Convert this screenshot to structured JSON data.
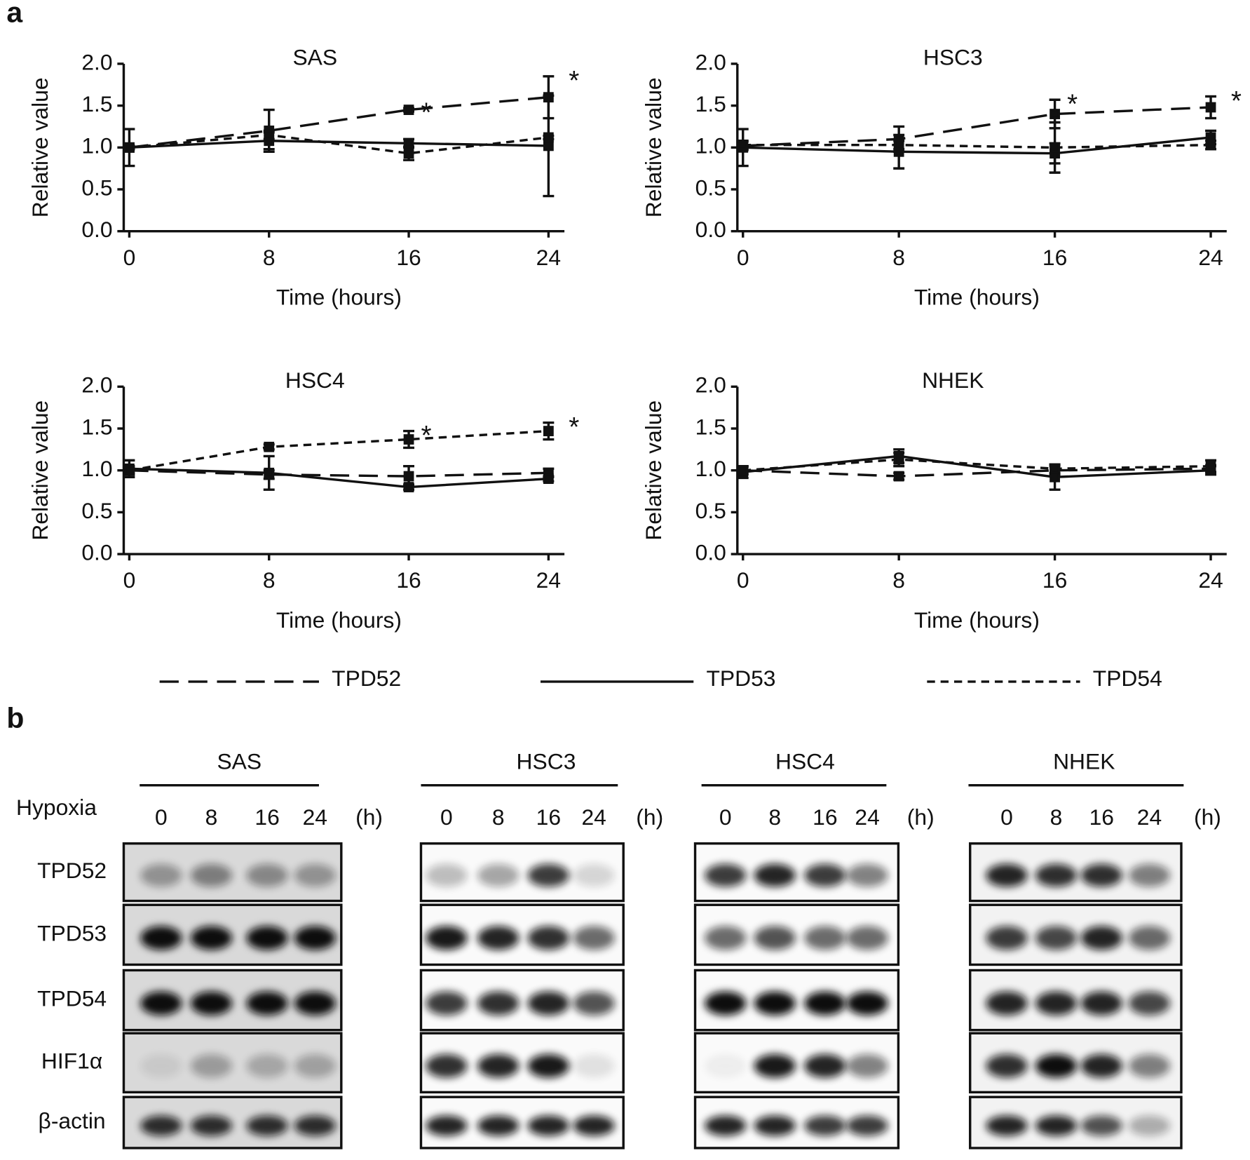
{
  "panel_labels": [
    "a",
    "b"
  ],
  "chart_data": [
    {
      "type": "line",
      "title": "SAS",
      "x": [
        0,
        8,
        16,
        24
      ],
      "xlim": [
        0,
        24
      ],
      "xticks": [
        0,
        8,
        16,
        24
      ],
      "ylim": [
        0,
        2
      ],
      "yticks": [
        {
          "value": 0,
          "label": "0.0"
        },
        {
          "value": 0.5,
          "label": "0.5"
        },
        {
          "value": 1,
          "label": "1.0"
        },
        {
          "value": 1.5,
          "label": "1.5"
        },
        {
          "value": 2,
          "label": "2.0"
        }
      ],
      "xlabel": "Time (hours)",
      "ylabel": "Relative value",
      "series": [
        {
          "name": "TPD52",
          "color": "#111111",
          "dash": "long",
          "values": [
            1.0,
            1.2,
            1.45,
            1.6
          ],
          "errors": [
            0.02,
            0.25,
            0.02,
            0.25
          ]
        },
        {
          "name": "TPD53",
          "color": "#111111",
          "dash": "solid",
          "values": [
            1.0,
            1.08,
            1.05,
            1.02
          ],
          "errors": [
            0.22,
            0.1,
            0.05,
            0.6
          ]
        },
        {
          "name": "TPD54",
          "color": "#111111",
          "dash": "short",
          "values": [
            1.0,
            1.15,
            0.93,
            1.12
          ],
          "errors": [
            0.02,
            0.05,
            0.08,
            0.02
          ]
        }
      ],
      "annotations": [
        {
          "text": "*",
          "x": 16,
          "series": "TPD52"
        },
        {
          "text": "*",
          "x": 24,
          "series": "TPD52"
        }
      ]
    },
    {
      "type": "line",
      "title": "HSC3",
      "x": [
        0,
        8,
        16,
        24
      ],
      "xlim": [
        0,
        24
      ],
      "xticks": [
        0,
        8,
        16,
        24
      ],
      "ylim": [
        0,
        2
      ],
      "yticks": [
        {
          "value": 0,
          "label": "0.0"
        },
        {
          "value": 0.5,
          "label": "0.5"
        },
        {
          "value": 1,
          "label": "1.0"
        },
        {
          "value": 1.5,
          "label": "1.5"
        },
        {
          "value": 2,
          "label": "2.0"
        }
      ],
      "xlabel": "Time (hours)",
      "ylabel": "Relative value",
      "series": [
        {
          "name": "TPD52",
          "color": "#111111",
          "dash": "long",
          "values": [
            1.02,
            1.1,
            1.4,
            1.48
          ],
          "errors": [
            0.05,
            0.15,
            0.17,
            0.13
          ]
        },
        {
          "name": "TPD53",
          "color": "#111111",
          "dash": "solid",
          "values": [
            1.0,
            0.95,
            0.93,
            1.12
          ],
          "errors": [
            0.22,
            0.2,
            0.12,
            0.08
          ]
        },
        {
          "name": "TPD54",
          "color": "#111111",
          "dash": "short",
          "values": [
            1.03,
            1.03,
            1.0,
            1.03
          ],
          "errors": [
            0.05,
            0.05,
            0.3,
            0.05
          ]
        }
      ],
      "annotations": [
        {
          "text": "*",
          "x": 16,
          "series": "TPD52"
        },
        {
          "text": "*",
          "x": 24,
          "series": "TPD52"
        }
      ]
    },
    {
      "type": "line",
      "title": "HSC4",
      "x": [
        0,
        8,
        16,
        24
      ],
      "xlim": [
        0,
        24
      ],
      "xticks": [
        0,
        8,
        16,
        24
      ],
      "ylim": [
        0,
        2
      ],
      "yticks": [
        {
          "value": 0,
          "label": "0.0"
        },
        {
          "value": 0.5,
          "label": "0.5"
        },
        {
          "value": 1,
          "label": "1.0"
        },
        {
          "value": 1.5,
          "label": "1.5"
        },
        {
          "value": 2,
          "label": "2.0"
        }
      ],
      "xlabel": "Time (hours)",
      "ylabel": "Relative value",
      "series": [
        {
          "name": "TPD52",
          "color": "#111111",
          "dash": "long",
          "values": [
            1.0,
            0.95,
            0.93,
            0.97
          ],
          "errors": [
            0.05,
            0.05,
            0.12,
            0.05
          ]
        },
        {
          "name": "TPD53",
          "color": "#111111",
          "dash": "solid",
          "values": [
            1.02,
            0.97,
            0.8,
            0.9
          ],
          "errors": [
            0.1,
            0.2,
            0.03,
            0.03
          ]
        },
        {
          "name": "TPD54",
          "color": "#111111",
          "dash": "short",
          "values": [
            1.0,
            1.28,
            1.37,
            1.47
          ],
          "errors": [
            0.03,
            0.03,
            0.1,
            0.1
          ]
        }
      ],
      "annotations": [
        {
          "text": "*",
          "x": 16,
          "series": "TPD54"
        },
        {
          "text": "*",
          "x": 24,
          "series": "TPD54"
        }
      ]
    },
    {
      "type": "line",
      "title": "NHEK",
      "x": [
        0,
        8,
        16,
        24
      ],
      "xlim": [
        0,
        24
      ],
      "xticks": [
        0,
        8,
        16,
        24
      ],
      "ylim": [
        0,
        2
      ],
      "yticks": [
        {
          "value": 0,
          "label": "0.0"
        },
        {
          "value": 0.5,
          "label": "0.5"
        },
        {
          "value": 1,
          "label": "1.0"
        },
        {
          "value": 1.5,
          "label": "1.5"
        },
        {
          "value": 2,
          "label": "2.0"
        }
      ],
      "xlabel": "Time (hours)",
      "ylabel": "Relative value",
      "series": [
        {
          "name": "TPD52",
          "color": "#111111",
          "dash": "long",
          "values": [
            1.0,
            0.93,
            1.0,
            1.02
          ],
          "errors": [
            0.04,
            0.04,
            0.05,
            0.04
          ]
        },
        {
          "name": "TPD53",
          "color": "#111111",
          "dash": "solid",
          "values": [
            0.98,
            1.17,
            0.92,
            1.0
          ],
          "errors": [
            0.07,
            0.08,
            0.15,
            0.05
          ]
        },
        {
          "name": "TPD54",
          "color": "#111111",
          "dash": "short",
          "values": [
            1.0,
            1.13,
            1.02,
            1.05
          ],
          "errors": [
            0.05,
            0.08,
            0.05,
            0.07
          ]
        }
      ],
      "annotations": []
    }
  ],
  "blots": {
    "row_header": "Hypoxia",
    "unit": "(h)",
    "rows": [
      "TPD52",
      "TPD53",
      "TPD54",
      "HIF1α",
      "β-actin"
    ],
    "panels": [
      {
        "title": "SAS",
        "times": [
          "0",
          "8",
          "16",
          "24"
        ]
      },
      {
        "title": "HSC3",
        "times": [
          "0",
          "8",
          "16",
          "24"
        ]
      },
      {
        "title": "HSC4",
        "times": [
          "0",
          "8",
          "16",
          "24"
        ]
      },
      {
        "title": "NHEK",
        "times": [
          "0",
          "8",
          "16",
          "24"
        ]
      }
    ]
  }
}
